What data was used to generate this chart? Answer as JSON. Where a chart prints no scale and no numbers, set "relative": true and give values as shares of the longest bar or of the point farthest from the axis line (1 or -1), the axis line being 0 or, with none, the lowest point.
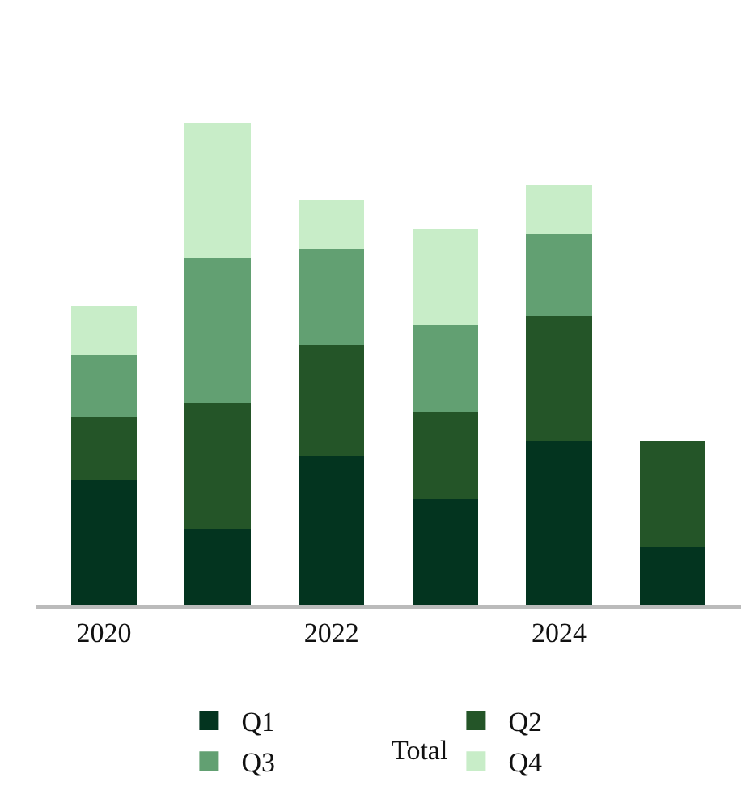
{
  "chart_data": {
    "type": "bar",
    "stacked": true,
    "relative": true,
    "categories": [
      "2020",
      null,
      "2022",
      null,
      "2024",
      null
    ],
    "series": [
      {
        "name": "Q1",
        "color": "#03341f",
        "values": [
          0.26,
          0.16,
          0.31,
          0.22,
          0.34,
          0.12
        ]
      },
      {
        "name": "Q2",
        "color": "#245528",
        "values": [
          0.13,
          0.26,
          0.23,
          0.18,
          0.26,
          0.22
        ]
      },
      {
        "name": "Q3",
        "color": "#62a072",
        "values": [
          0.13,
          0.3,
          0.2,
          0.18,
          0.17,
          null
        ]
      },
      {
        "name": "Q4",
        "color": "#c8edc8",
        "values": [
          0.1,
          0.28,
          0.1,
          0.2,
          0.1,
          null
        ]
      }
    ],
    "annotations": [
      "Total"
    ],
    "legend": "bottom"
  }
}
